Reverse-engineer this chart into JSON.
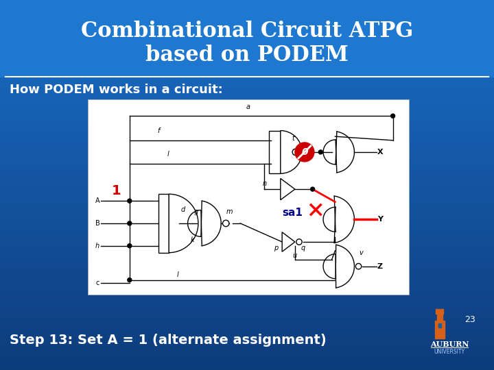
{
  "bg_top_color": "#1A6EC8",
  "bg_bottom_color": "#0D3B7A",
  "header_color": "#1E78D0",
  "title_line1": "Combinational Circuit ATPG",
  "title_line2": "based on PODEM",
  "title_color": "#FFFFFF",
  "title_fontsize": 22,
  "subtitle": "How PODEM works in a circuit:",
  "subtitle_color": "#FFFFFF",
  "subtitle_fontsize": 13,
  "step_text": "Step 13: Set A = 1 (alternate assignment)",
  "step_color": "#FFFFFF",
  "step_fontsize": 14,
  "page_number": "23",
  "divider_color": "#FFFFFF",
  "circuit_bg": "#FFFFFF",
  "circuit_border": "#AAAAAA",
  "wire_color": "#000000",
  "highlight_red": "#CC0000",
  "sa1_color": "#00008B",
  "one_label_color": "#CC0000",
  "auburn_tower_color": "#D4601A",
  "auburn_text_color": "#FFFFFF"
}
